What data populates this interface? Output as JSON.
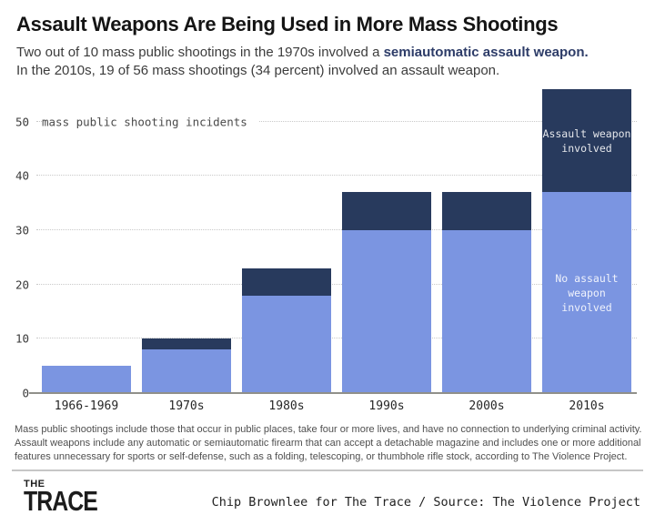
{
  "header": {
    "title": "Assault Weapons Are Being Used in More Mass Shootings",
    "subtitle": {
      "line1_regular": "Two out of 10 mass public shootings in the 1970s involved a ",
      "line1_bold": "semiautomatic assault weapon.",
      "line2": "In the 2010s, 19 of 56 mass shootings (34 percent) involved an assault weapon."
    }
  },
  "chart_data": {
    "type": "bar",
    "stacked": true,
    "categories": [
      "1966-1969",
      "1970s",
      "1980s",
      "1990s",
      "2000s",
      "2010s"
    ],
    "series": [
      {
        "name": "No assault weapon involved",
        "color": "#7b95e1",
        "values": [
          5,
          8,
          18,
          30,
          30,
          37
        ],
        "bar_label": "No assault\nweapon involved",
        "bar_label_on": "2010s"
      },
      {
        "name": "Assault weapon involved",
        "color": "#283a5d",
        "values": [
          0,
          2,
          5,
          7,
          7,
          19
        ],
        "bar_label": "Assault weapon\ninvolved",
        "bar_label_on": "2010s"
      }
    ],
    "totals": [
      5,
      10,
      23,
      37,
      37,
      56
    ],
    "y_ticks": [
      0,
      10,
      20,
      30,
      40,
      50
    ],
    "y_max": 57,
    "axis_annotation": "mass public shooting incidents",
    "xlabel": "",
    "ylabel": "mass public shooting incidents",
    "grid": "horizontal dotted",
    "legend_position": "labels inside 2010s bar segments"
  },
  "footnote": "Mass public shootings include those that occur in public places, take four or more lives, and have no connection to underlying criminal activity. Assault weapons include any automatic or semiautomatic firearm that can accept a detachable magazine and includes one or more additional features unnecessary for sports or self-defense, such as a folding, telescoping, or thumbhole rifle stock, according to The Violence Project.",
  "footer": {
    "logo_line1": "THE",
    "logo_line2": "TRACE",
    "credit": "Chip Brownlee for The Trace / Source: The Violence Project"
  },
  "colors": {
    "no_assault_blue": "#7b95e1",
    "assault_navy": "#283a5d",
    "accent_navy_text": "#2d3c68",
    "gridline": "#c9c9c9",
    "axis_line": "#90908a"
  }
}
